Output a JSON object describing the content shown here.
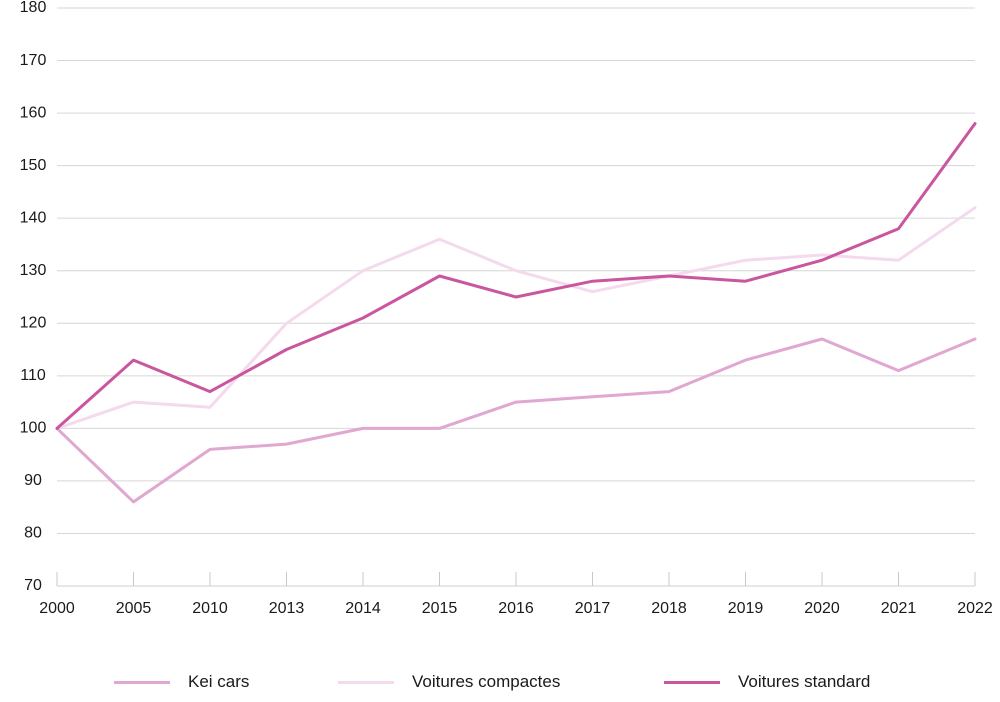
{
  "chart_data": {
    "type": "line",
    "categories": [
      "2000",
      "2005",
      "2010",
      "2013",
      "2014",
      "2015",
      "2016",
      "2017",
      "2018",
      "2019",
      "2020",
      "2021",
      "2022"
    ],
    "ylim": [
      70,
      180
    ],
    "yticks": [
      70,
      80,
      90,
      100,
      110,
      120,
      130,
      140,
      150,
      160,
      170,
      180
    ],
    "grid": true,
    "legend_position": "bottom",
    "series": [
      {
        "name": "Kei cars",
        "color": "#e0a8d0",
        "values": [
          100,
          86,
          96,
          97,
          100,
          100,
          105,
          106,
          107,
          113,
          117,
          111,
          117
        ]
      },
      {
        "name": "Voitures compactes",
        "color": "#f5d9ec",
        "values": [
          100,
          105,
          104,
          120,
          130,
          136,
          130,
          126,
          129,
          132,
          133,
          132,
          142
        ]
      },
      {
        "name": "Voitures standard",
        "color": "#c9569e",
        "values": [
          100,
          113,
          107,
          115,
          121,
          129,
          125,
          128,
          129,
          128,
          132,
          138,
          158
        ]
      }
    ]
  }
}
